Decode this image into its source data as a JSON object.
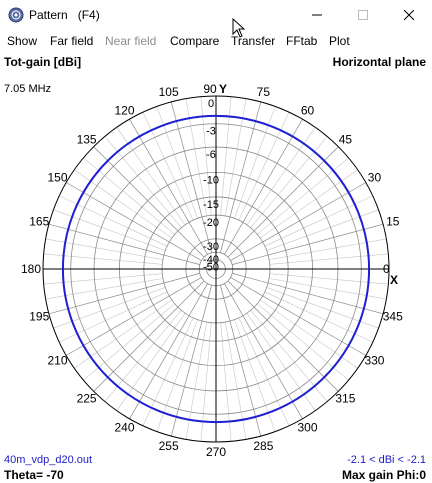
{
  "window": {
    "title": "Pattern   (F4)",
    "icon": "antenna-app-icon",
    "controls": [
      "minimize-icon",
      "maximize-icon",
      "close-icon"
    ]
  },
  "menu": [
    {
      "label": "Show",
      "enabled": true
    },
    {
      "label": "Far field",
      "enabled": true
    },
    {
      "label": "Near field",
      "enabled": false
    },
    {
      "label": "Compare",
      "enabled": true
    },
    {
      "label": "Transfer",
      "enabled": true
    },
    {
      "label": "FFtab",
      "enabled": true
    },
    {
      "label": "Plot",
      "enabled": true
    }
  ],
  "plot": {
    "gain_label": "Tot-gain [dBi]",
    "plane_label": "Horizontal plane",
    "frequency": "7.05 MHz",
    "filename": "40m_vdp_d20.out",
    "theta": "Theta= -70",
    "gain_range": "-2.1 < dBi < -2.1",
    "max_gain": "Max gain Phi:0",
    "axis_y_marker": "Y",
    "axis_x_marker": "X",
    "angle_labels": [
      "0",
      "15",
      "30",
      "45",
      "60",
      "75",
      "90",
      "105",
      "120",
      "135",
      "150",
      "165",
      "180",
      "195",
      "210",
      "225",
      "240",
      "255",
      "270",
      "285",
      "300",
      "315",
      "330",
      "345"
    ],
    "db_labels": [
      "0",
      "-3",
      "-6",
      "-10",
      "-15",
      "-20",
      "-30",
      "-40",
      "-50"
    ],
    "colors": {
      "pattern": "#1e1ed2",
      "grid": "#8a8a8a",
      "info_text": "#1c1cc8"
    }
  },
  "chart_data": {
    "type": "polar",
    "title": "Tot-gain [dBi]",
    "subtitle": "Horizontal plane",
    "radial_ticks_db": [
      0,
      -3,
      -6,
      -10,
      -15,
      -20,
      -30,
      -40,
      -50
    ],
    "angular_ticks_deg": [
      0,
      15,
      30,
      45,
      60,
      75,
      90,
      105,
      120,
      135,
      150,
      165,
      180,
      195,
      210,
      225,
      240,
      255,
      270,
      285,
      300,
      315,
      330,
      345
    ],
    "series": [
      {
        "values": [
          {
            "phi_from_deg": 0,
            "phi_to_deg": 360,
            "gain_dbi": -2.1
          }
        ]
      }
    ]
  }
}
